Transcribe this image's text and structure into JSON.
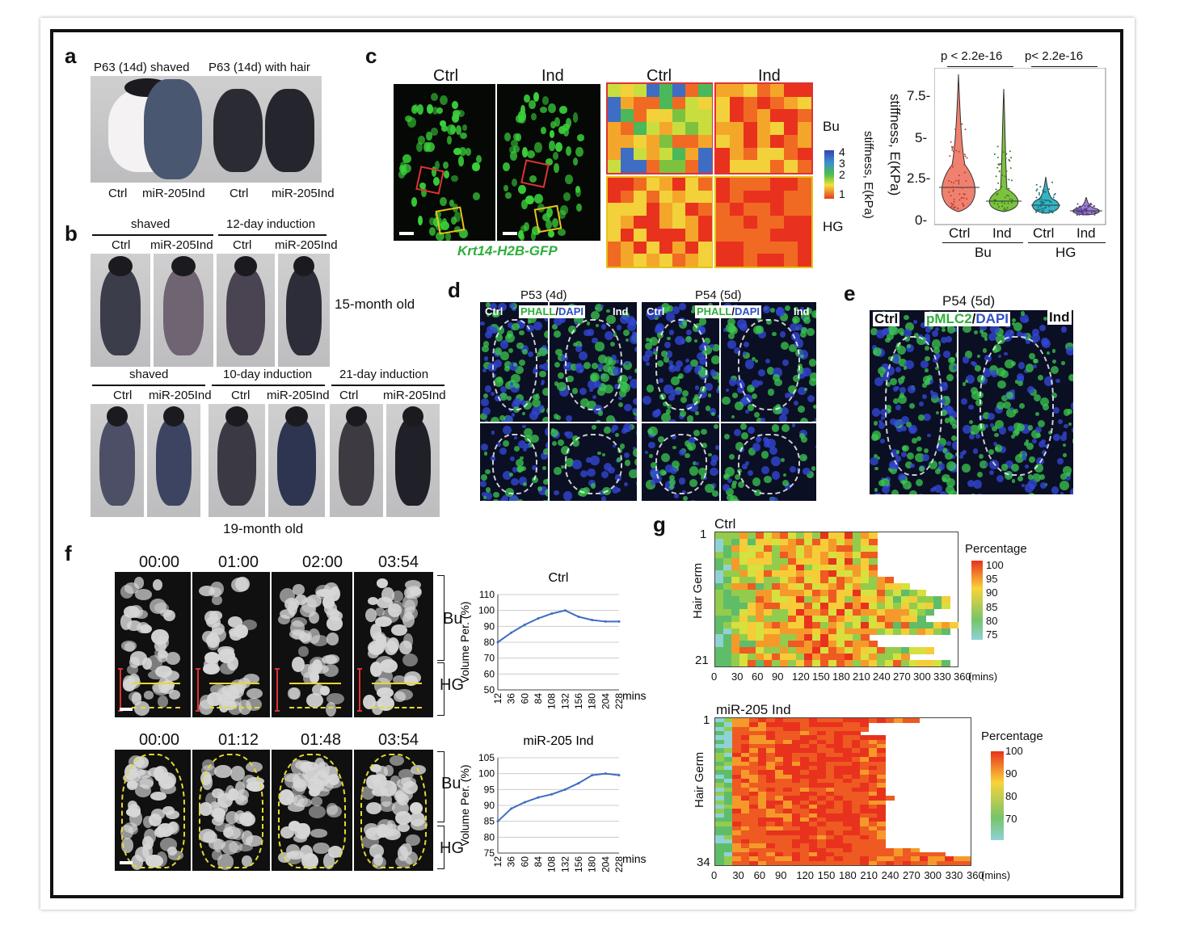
{
  "panels": {
    "a": "a",
    "b": "b",
    "c": "c",
    "d": "d",
    "e": "e",
    "f": "f",
    "g": "g"
  },
  "a": {
    "top_left": "P63 (14d) shaved",
    "top_right": "P63 (14d) with hair",
    "labels": [
      "Ctrl",
      "miR-205Ind",
      "Ctrl",
      "miR-205Ind"
    ]
  },
  "b": {
    "row1_groups": [
      "shaved",
      "12-day induction"
    ],
    "row1_labels": [
      "Ctrl",
      "miR-205Ind",
      "Ctrl",
      "miR-205Ind"
    ],
    "row1_age": "15-month old",
    "row2_groups": [
      "shaved",
      "10-day induction",
      "21-day induction"
    ],
    "row2_labels": [
      "Ctrl",
      "miR-205Ind",
      "Ctrl",
      "miR-205Ind",
      "Ctrl",
      "miR-205Ind"
    ],
    "row2_age": "19-month old"
  },
  "c": {
    "micro_titles": [
      "Ctrl",
      "Ind"
    ],
    "heat_titles": [
      "Ctrl",
      "Ind"
    ],
    "gene": "Krt14-H2B-GFP",
    "row_labels": [
      "Bu",
      "HG"
    ],
    "scale_ticks": [
      "4",
      "3",
      "2",
      "1"
    ],
    "scale_label": "stiffness, E(kPa)",
    "violin": {
      "pvalues": [
        "p < 2.2e-16",
        "p< 2.2e-16"
      ],
      "ylabel": "stiffness, E(KPa)",
      "yticks": [
        "7.5-",
        "5-",
        "2.5-",
        "0-"
      ],
      "groups": [
        "Ctrl",
        "Ind",
        "Ctrl",
        "Ind"
      ],
      "group_labels": [
        "Bu",
        "HG"
      ],
      "colors": [
        "#f08070",
        "#7cc23f",
        "#35b5c4",
        "#9b7fd0"
      ]
    }
  },
  "d": {
    "titles": [
      "P53 (4d)",
      "P54 (5d)"
    ],
    "ctrl": "Ctrl",
    "ind": "Ind",
    "stain_a": "PHALL",
    "slash": "/",
    "stain_b": "DAPI"
  },
  "e": {
    "title": "P54 (5d)",
    "ctrl": "Ctrl",
    "ind": "Ind",
    "stain_a": "pMLC2",
    "slash": "/",
    "stain_b": "DAPI"
  },
  "f": {
    "row1_times": [
      "00:00",
      "01:00",
      "02:00",
      "03:54"
    ],
    "row2_times": [
      "00:00",
      "01:12",
      "01:48",
      "03:54"
    ],
    "bu": "Bu",
    "hg": "HG"
  },
  "g": {
    "ctrl_title": "Ctrl",
    "ind_title": "miR-205 Ind",
    "ylabel": "Hair Germ",
    "legend_title": "Percentage",
    "ctrl_legend_ticks": [
      "100",
      "95",
      "90",
      "85",
      "80",
      "75"
    ],
    "ind_legend_ticks": [
      "100",
      "90",
      "80",
      "70"
    ],
    "ctrl_yticks": [
      "1",
      "21"
    ],
    "ind_yticks": [
      "1",
      "34"
    ],
    "xticks": [
      "0",
      "30",
      "60",
      "90",
      "120",
      "150",
      "180",
      "210",
      "240",
      "270",
      "300",
      "330",
      "360"
    ],
    "xunit": "(mins)"
  },
  "chart_data": [
    {
      "type": "line",
      "title": "Ctrl",
      "xlabel": "mins",
      "ylabel": "Volume Per. (%)",
      "x": [
        12,
        36,
        60,
        84,
        108,
        132,
        156,
        180,
        204,
        228
      ],
      "xticks": [
        "12",
        "36",
        "60",
        "84",
        "108",
        "132",
        "156",
        "180",
        "204",
        "228"
      ],
      "yticks": [
        "110",
        "100",
        "90",
        "80",
        "70",
        "60",
        "50"
      ],
      "ylim": [
        50,
        110
      ],
      "color": "#3f6dc4",
      "series": [
        {
          "values": [
            80,
            86,
            91,
            95,
            98,
            100,
            96,
            94,
            93,
            93
          ]
        }
      ]
    },
    {
      "type": "line",
      "title": "miR-205 Ind",
      "xlabel": "mins",
      "ylabel": "Volume Per. (%)",
      "x": [
        12,
        36,
        60,
        84,
        108,
        132,
        156,
        180,
        204,
        228
      ],
      "xticks": [
        "12",
        "36",
        "60",
        "84",
        "108",
        "132",
        "156",
        "180",
        "204",
        "228"
      ],
      "yticks": [
        "105",
        "100",
        "95",
        "90",
        "85",
        "80",
        "75"
      ],
      "ylim": [
        75,
        105
      ],
      "color": "#3f6dc4",
      "series": [
        {
          "values": [
            85,
            89,
            91,
            92.5,
            93.5,
            95,
            97,
            99.5,
            100,
            99.5
          ]
        }
      ]
    }
  ]
}
